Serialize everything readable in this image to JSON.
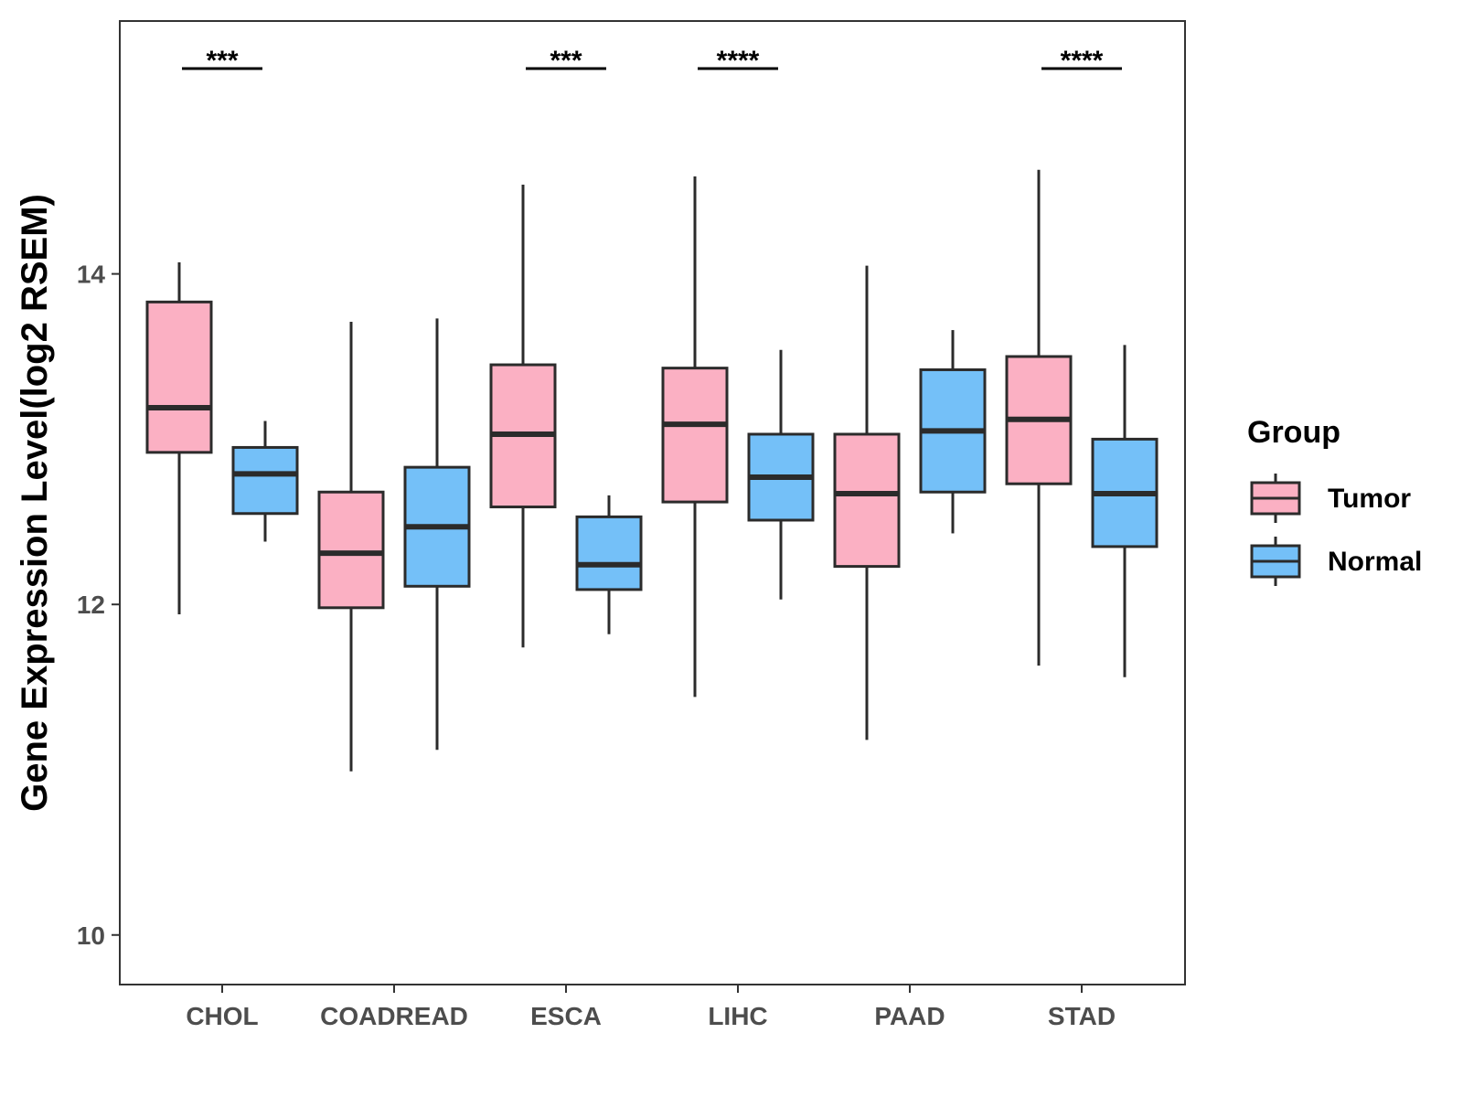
{
  "chart_data": {
    "type": "boxplot",
    "title": "",
    "xlabel": "",
    "ylabel": "Gene Expression Level(log2 RSEM)",
    "ylim": [
      9.7,
      15.53
    ],
    "yticks": [
      10,
      12,
      14
    ],
    "ytick_labels": [
      "10",
      "12",
      "14"
    ],
    "categories": [
      "CHOL",
      "COADREAD",
      "ESCA",
      "LIHC",
      "PAAD",
      "STAD"
    ],
    "legend": {
      "title": "Group",
      "position": "right",
      "entries": [
        {
          "name": "Tumor",
          "color": "#fbb0c3"
        },
        {
          "name": "Normal",
          "color": "#74c0f8"
        }
      ]
    },
    "series": [
      {
        "name": "Tumor",
        "color": "#fbb0c3",
        "boxes": [
          {
            "category": "CHOL",
            "min": 11.94,
            "q1": 12.92,
            "median": 13.19,
            "q3": 13.83,
            "max": 14.07
          },
          {
            "category": "COADREAD",
            "min": 10.99,
            "q1": 11.98,
            "median": 12.31,
            "q3": 12.68,
            "max": 13.71
          },
          {
            "category": "ESCA",
            "min": 11.74,
            "q1": 12.59,
            "median": 13.03,
            "q3": 13.45,
            "max": 14.54
          },
          {
            "category": "LIHC",
            "min": 11.44,
            "q1": 12.62,
            "median": 13.09,
            "q3": 13.43,
            "max": 14.59
          },
          {
            "category": "PAAD",
            "min": 11.18,
            "q1": 12.23,
            "median": 12.67,
            "q3": 13.03,
            "max": 14.05
          },
          {
            "category": "STAD",
            "min": 11.63,
            "q1": 12.73,
            "median": 13.12,
            "q3": 13.5,
            "max": 14.63
          }
        ]
      },
      {
        "name": "Normal",
        "color": "#74c0f8",
        "boxes": [
          {
            "category": "CHOL",
            "min": 12.38,
            "q1": 12.55,
            "median": 12.79,
            "q3": 12.95,
            "max": 13.11
          },
          {
            "category": "COADREAD",
            "min": 11.12,
            "q1": 12.11,
            "median": 12.47,
            "q3": 12.83,
            "max": 13.73
          },
          {
            "category": "ESCA",
            "min": 11.82,
            "q1": 12.09,
            "median": 12.24,
            "q3": 12.53,
            "max": 12.66
          },
          {
            "category": "LIHC",
            "min": 12.03,
            "q1": 12.51,
            "median": 12.77,
            "q3": 13.03,
            "max": 13.54
          },
          {
            "category": "PAAD",
            "min": 12.43,
            "q1": 12.68,
            "median": 13.05,
            "q3": 13.42,
            "max": 13.66
          },
          {
            "category": "STAD",
            "min": 11.56,
            "q1": 12.35,
            "median": 12.67,
            "q3": 13.0,
            "max": 13.57
          }
        ]
      }
    ],
    "significance": [
      {
        "category": "CHOL",
        "label": "***"
      },
      {
        "category": "ESCA",
        "label": "***"
      },
      {
        "category": "LIHC",
        "label": "****"
      },
      {
        "category": "STAD",
        "label": "****"
      }
    ]
  }
}
